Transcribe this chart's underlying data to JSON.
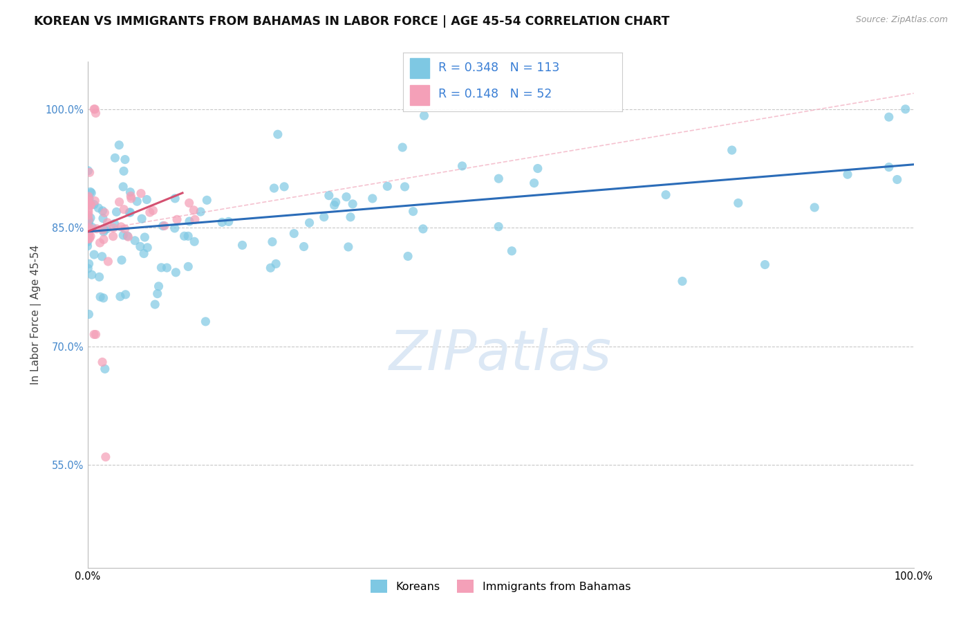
{
  "title": "KOREAN VS IMMIGRANTS FROM BAHAMAS IN LABOR FORCE | AGE 45-54 CORRELATION CHART",
  "source": "Source: ZipAtlas.com",
  "ylabel": "In Labor Force | Age 45-54",
  "xlim": [
    0.0,
    1.0
  ],
  "ylim": [
    0.42,
    1.06
  ],
  "yticks": [
    0.55,
    0.7,
    0.85,
    1.0
  ],
  "ytick_labels": [
    "55.0%",
    "70.0%",
    "85.0%",
    "100.0%"
  ],
  "xtick_labels": [
    "0.0%",
    "100.0%"
  ],
  "r_korean": 0.348,
  "n_korean": 113,
  "r_bahamas": 0.148,
  "n_bahamas": 52,
  "blue_color": "#7ec8e3",
  "pink_color": "#f4a0b8",
  "line_blue": "#2b6cb8",
  "line_pink": "#d45070",
  "diag_color": "#f4b8c8",
  "legend_r_color": "#3a7fd5",
  "background_color": "#ffffff",
  "watermark_color": "#dce8f5",
  "title_fontsize": 12.5,
  "axis_label_fontsize": 11,
  "tick_fontsize": 10.5
}
